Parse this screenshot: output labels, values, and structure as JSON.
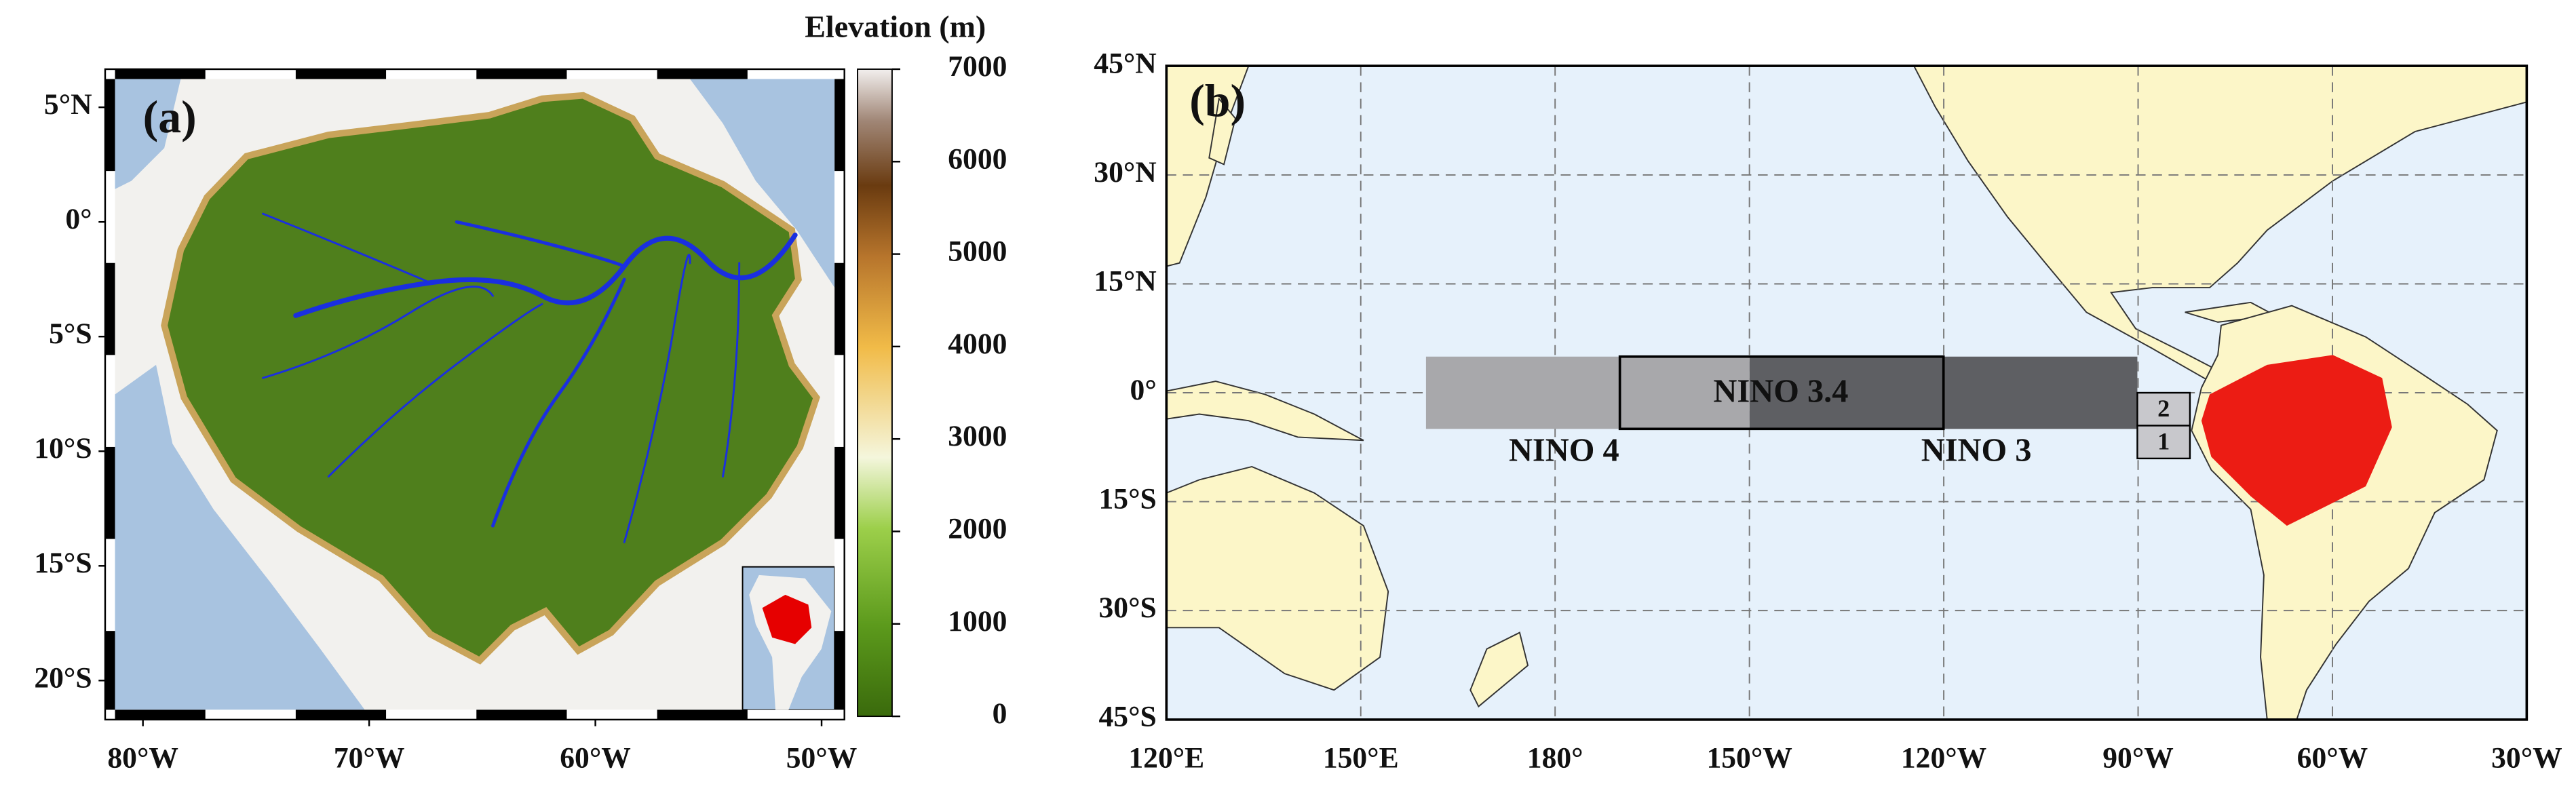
{
  "panel_a": {
    "label": "(a)",
    "colorbar": {
      "title": "Elevation (m)",
      "range": [
        0,
        7000
      ],
      "ticks": [
        0,
        1000,
        2000,
        3000,
        4000,
        5000,
        6000,
        7000
      ]
    },
    "lat_ticks": [
      {
        "value": 5,
        "label": "5°N"
      },
      {
        "value": 0,
        "label": "0°"
      },
      {
        "value": -5,
        "label": "5°S"
      },
      {
        "value": -10,
        "label": "10°S"
      },
      {
        "value": -15,
        "label": "15°S"
      },
      {
        "value": -20,
        "label": "20°S"
      }
    ],
    "lon_ticks": [
      {
        "value": -80,
        "label": "80°W"
      },
      {
        "value": -70,
        "label": "70°W"
      },
      {
        "value": -60,
        "label": "60°W"
      },
      {
        "value": -50,
        "label": "50°W"
      }
    ]
  },
  "panel_b": {
    "label": "(b)",
    "lat_ticks": [
      {
        "value": 45,
        "label": "45°N"
      },
      {
        "value": 30,
        "label": "30°N"
      },
      {
        "value": 15,
        "label": "15°N"
      },
      {
        "value": 0,
        "label": "0°"
      },
      {
        "value": -15,
        "label": "15°S"
      },
      {
        "value": -30,
        "label": "30°S"
      },
      {
        "value": -45,
        "label": "45°S"
      }
    ],
    "lon_ticks": [
      {
        "value": 120,
        "label": "120°E"
      },
      {
        "value": 150,
        "label": "150°E"
      },
      {
        "value": 180,
        "label": "180°"
      },
      {
        "value": 210,
        "label": "150°W"
      },
      {
        "value": 240,
        "label": "120°W"
      },
      {
        "value": 270,
        "label": "90°W"
      },
      {
        "value": 300,
        "label": "60°W"
      },
      {
        "value": 330,
        "label": "30°W"
      }
    ],
    "regions": {
      "nino4": "NINO 4",
      "nino34": "NINO 3.4",
      "nino3": "NINO 3",
      "nino1": "1",
      "nino2": "2"
    }
  }
}
